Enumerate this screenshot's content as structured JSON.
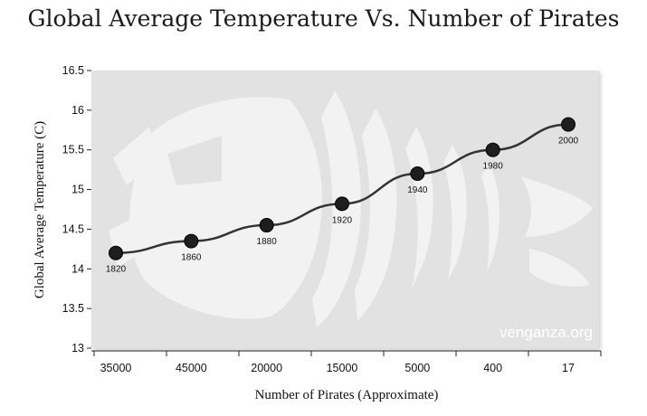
{
  "chart_data": {
    "type": "line",
    "title": "Global Average Temperature Vs. Number of Pirates",
    "xlabel": "Number of Pirates (Approximate)",
    "ylabel": "Global Average Temperature (C)",
    "categories": [
      "35000",
      "45000",
      "20000",
      "15000",
      "5000",
      "400",
      "17"
    ],
    "series": [
      {
        "values": [
          14.2,
          14.35,
          14.55,
          14.82,
          15.2,
          15.5,
          15.82
        ]
      }
    ],
    "point_labels": [
      "1820",
      "1860",
      "1880",
      "1920",
      "1940",
      "1980",
      "2000"
    ],
    "ylim": [
      13,
      16.5
    ],
    "yticks": [
      "13",
      "13.5",
      "14",
      "14.5",
      "15",
      "15.5",
      "16",
      "16.5"
    ],
    "grid": false,
    "watermark": "venganza.org",
    "colors": {
      "plot_bg": "#e2e2e2",
      "line": "#333333",
      "marker": "#1e1e1e"
    }
  }
}
